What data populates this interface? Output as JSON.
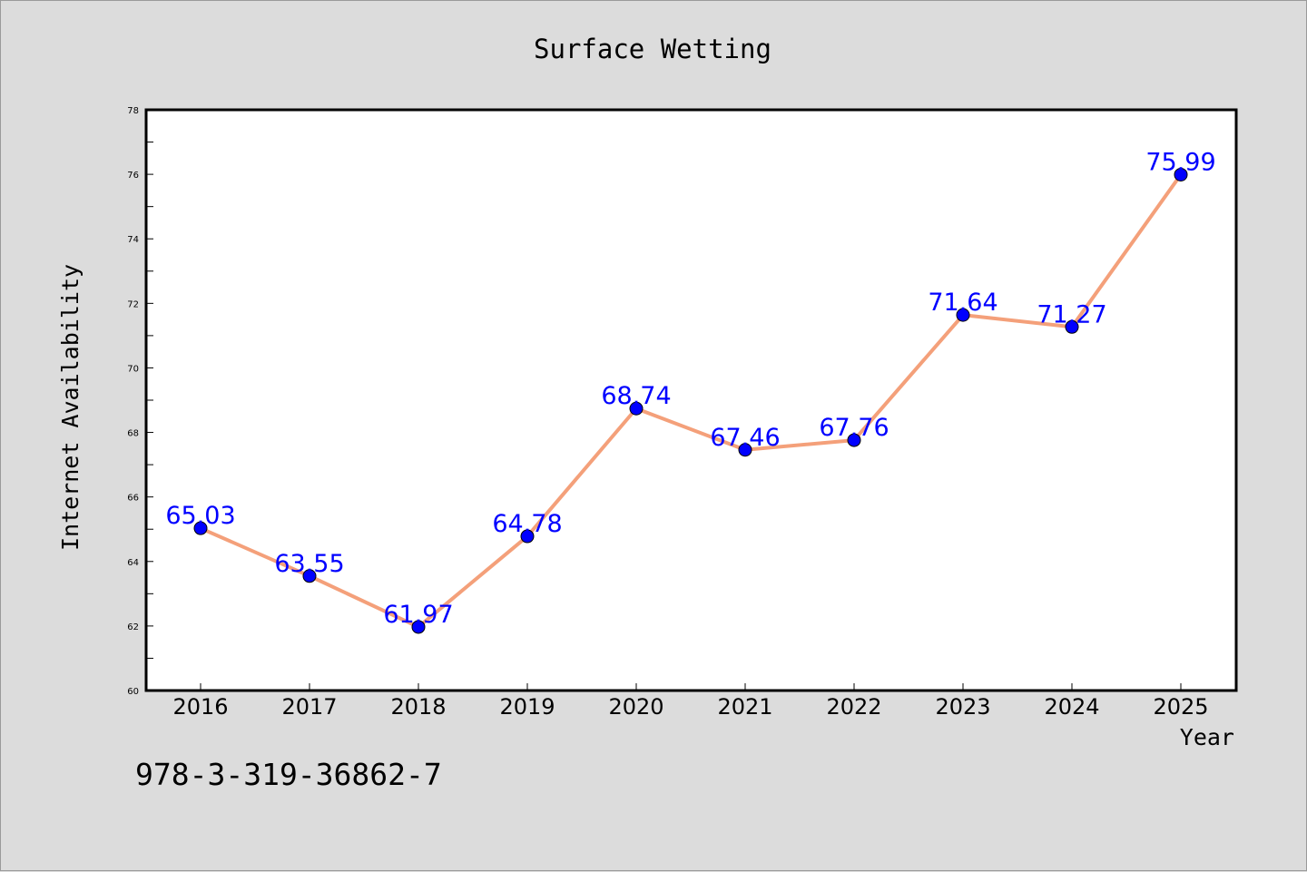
{
  "chart_data": {
    "type": "line",
    "title": "Surface Wetting",
    "xlabel": "Year",
    "ylabel": "Internet Availability",
    "categories": [
      "2016",
      "2017",
      "2018",
      "2019",
      "2020",
      "2021",
      "2022",
      "2023",
      "2024",
      "2025"
    ],
    "series": [
      {
        "values": [
          65.03,
          63.55,
          61.97,
          64.78,
          68.74,
          67.46,
          67.76,
          71.64,
          71.27,
          75.99
        ],
        "labels": [
          "65.03",
          "63.55",
          "61.97",
          "64.78",
          "68.74",
          "67.46",
          "67.76",
          "71.64",
          "71.27",
          "75.99"
        ],
        "line_color": "#f4a07a",
        "marker_color": "#0000ff"
      }
    ],
    "ylim": [
      60,
      78
    ],
    "yticks": [
      "60",
      "62",
      "64",
      "66",
      "68",
      "70",
      "72",
      "74",
      "76",
      "78"
    ],
    "grid": false,
    "legend": "none"
  },
  "footer_text": "978-3-319-36862-7"
}
